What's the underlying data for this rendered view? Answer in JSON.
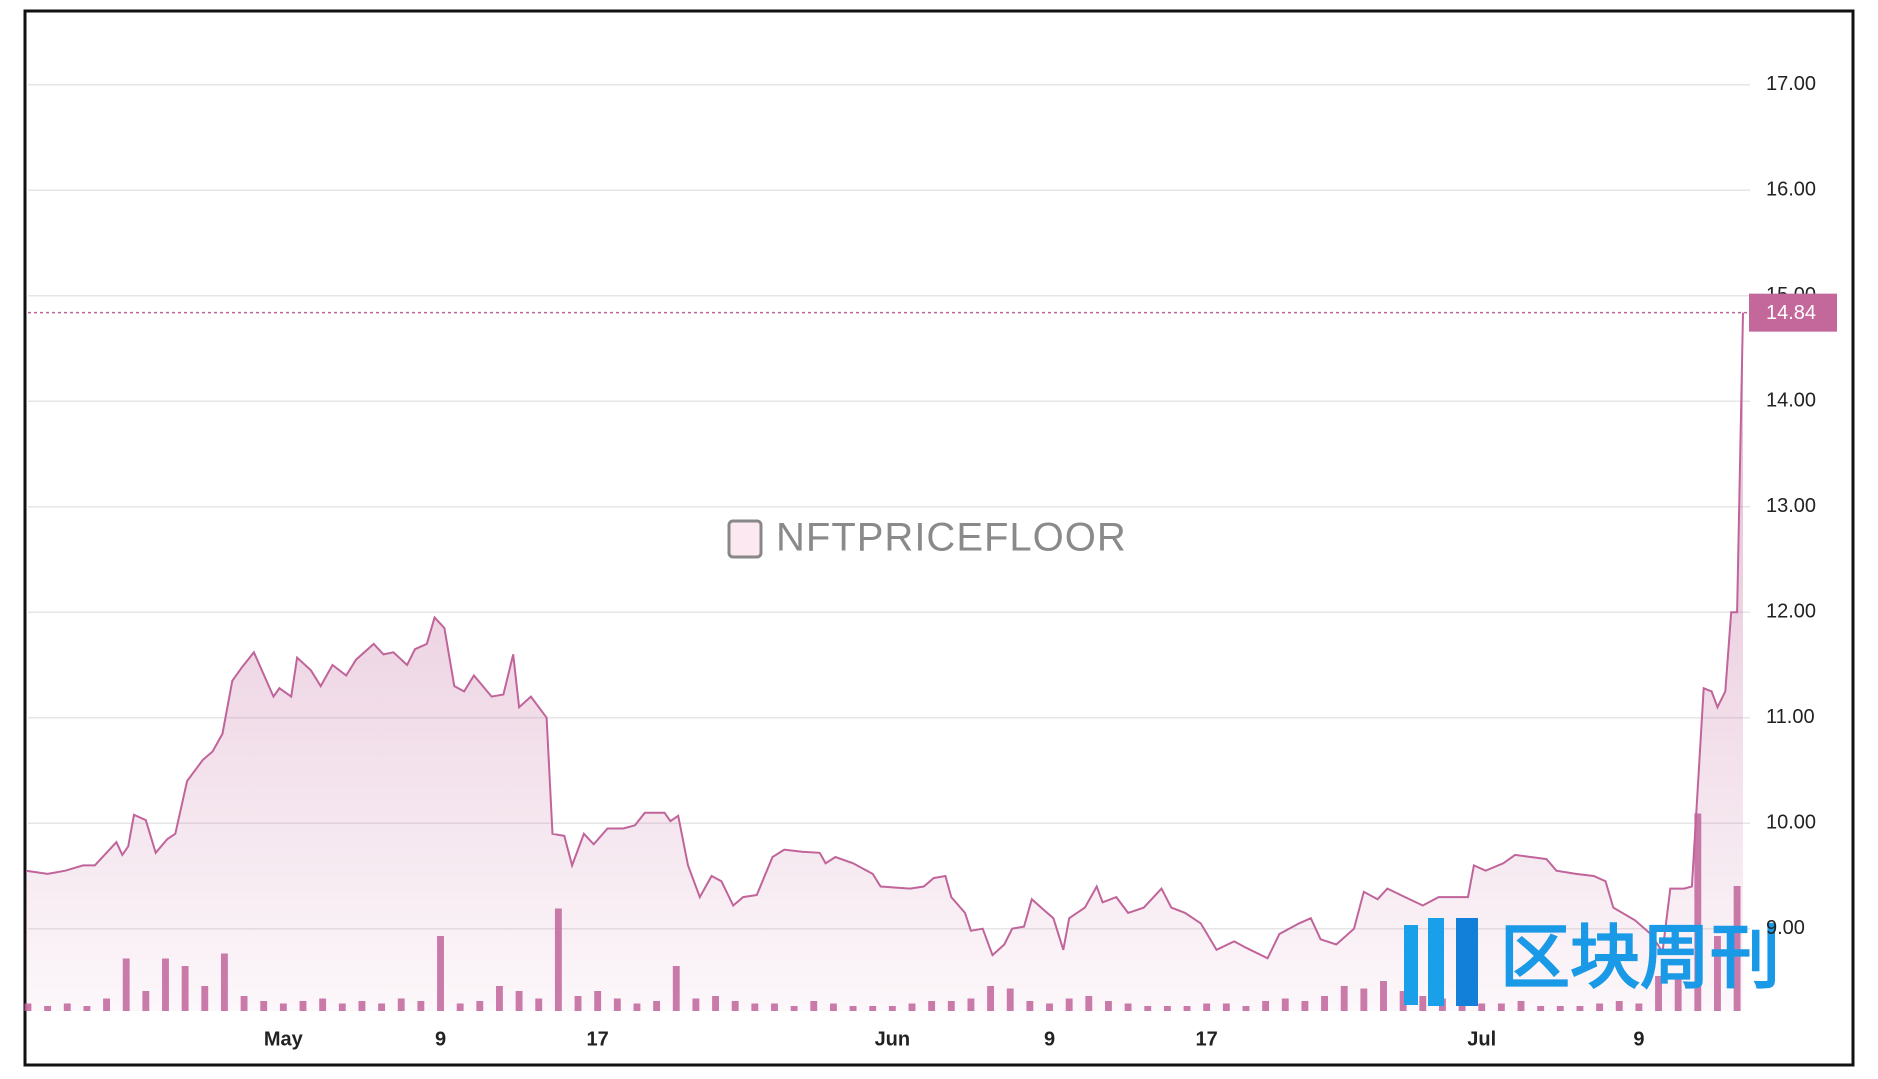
{
  "chart_data": {
    "type": "area",
    "watermark": "NFTPRICEFLOOR",
    "source_watermark": "区块周刊",
    "last_value_label": "14.84",
    "last_value": 14.84,
    "xlim": [
      -13.1,
      74.3
    ],
    "xticks": [
      {
        "value": 0,
        "label": "May"
      },
      {
        "value": 8,
        "label": "9"
      },
      {
        "value": 16,
        "label": "17"
      },
      {
        "value": 31,
        "label": "Jun"
      },
      {
        "value": 39,
        "label": "9"
      },
      {
        "value": 47,
        "label": "17"
      },
      {
        "value": 61,
        "label": "Jul"
      },
      {
        "value": 69,
        "label": "9"
      }
    ],
    "ylim": [
      8.22,
      17.69
    ],
    "yticks": [
      {
        "value": 9,
        "label": "9.00"
      },
      {
        "value": 10,
        "label": "10.00"
      },
      {
        "value": 11,
        "label": "11.00"
      },
      {
        "value": 12,
        "label": "12.00"
      },
      {
        "value": 13,
        "label": "13.00"
      },
      {
        "value": 14,
        "label": "14.00"
      },
      {
        "value": 15,
        "label": "15.00"
      },
      {
        "value": 16,
        "label": "16.00"
      },
      {
        "value": 17,
        "label": "17.00"
      }
    ],
    "y2lim": [
      0,
      100
    ],
    "grid": true,
    "series": [
      {
        "color": "#c0649a",
        "x": [
          -13.1,
          -12,
          -11.1,
          -10.2,
          -9.6,
          -9,
          -8.5,
          -8.2,
          -7.9,
          -7.6,
          -7,
          -6.5,
          -5.9,
          -5.5,
          -4.9,
          -4.1,
          -3.6,
          -3.1,
          -2.6,
          -2.1,
          -1.5,
          -0.5,
          -0.2,
          0.4,
          0.7,
          1.4,
          1.9,
          2.5,
          3.2,
          3.7,
          4.6,
          5.1,
          5.6,
          6.3,
          6.7,
          7.3,
          7.7,
          8.2,
          8.7,
          9.2,
          9.7,
          10.6,
          11.2,
          11.7,
          12,
          12.6,
          13.4,
          13.7,
          14.3,
          14.7,
          15.3,
          15.8,
          16.5,
          17.3,
          17.9,
          18.4,
          19.4,
          19.7,
          20.1,
          20.6,
          21.2,
          21.8,
          22.3,
          22.9,
          23.4,
          24.1,
          24.9,
          25.5,
          26.4,
          27.3,
          27.6,
          28.1,
          29,
          30,
          30.4,
          31.9,
          32.6,
          33.1,
          33.7,
          34,
          34.7,
          35,
          35.6,
          36.1,
          36.7,
          37.1,
          37.7,
          38.1,
          38.7,
          39.2,
          39.7,
          40,
          40.8,
          41.4,
          41.7,
          42.4,
          43,
          43.8,
          44.7,
          45.2,
          45.9,
          46.7,
          47.5,
          48.4,
          49,
          50.1,
          50.7,
          51.7,
          52.3,
          52.8,
          53.6,
          54.5,
          55,
          55.7,
          56.2,
          57.1,
          58,
          58.8,
          60.3,
          60.6,
          61.2,
          62.1,
          62.7,
          64.3,
          64.8,
          65.8,
          66.7,
          67.3,
          67.7,
          68.8,
          69.6,
          70.2,
          70.6,
          71.3,
          71.7,
          72.3,
          72.7,
          73,
          73.4,
          73.7,
          74,
          74.3
        ],
        "values": [
          9.55,
          9.52,
          9.55,
          9.6,
          9.6,
          9.72,
          9.82,
          9.7,
          9.78,
          10.08,
          10.03,
          9.72,
          9.85,
          9.9,
          10.4,
          10.6,
          10.68,
          10.85,
          11.35,
          11.48,
          11.62,
          11.2,
          11.28,
          11.2,
          11.57,
          11.45,
          11.3,
          11.5,
          11.4,
          11.55,
          11.7,
          11.6,
          11.62,
          11.5,
          11.65,
          11.7,
          11.95,
          11.85,
          11.3,
          11.25,
          11.4,
          11.2,
          11.22,
          11.6,
          11.1,
          11.2,
          11,
          9.9,
          9.88,
          9.6,
          9.9,
          9.8,
          9.95,
          9.95,
          9.98,
          10.1,
          10.1,
          10.02,
          10.07,
          9.6,
          9.3,
          9.5,
          9.45,
          9.22,
          9.3,
          9.32,
          9.68,
          9.75,
          9.73,
          9.72,
          9.62,
          9.68,
          9.62,
          9.52,
          9.4,
          9.38,
          9.4,
          9.48,
          9.5,
          9.3,
          9.15,
          8.98,
          9,
          8.75,
          8.85,
          9,
          9.02,
          9.28,
          9.18,
          9.1,
          8.8,
          9.1,
          9.2,
          9.4,
          9.25,
          9.3,
          9.15,
          9.2,
          9.38,
          9.2,
          9.15,
          9.05,
          8.8,
          8.88,
          8.82,
          8.72,
          8.95,
          9.05,
          9.1,
          8.9,
          8.85,
          9,
          9.35,
          9.28,
          9.38,
          9.3,
          9.22,
          9.3,
          9.3,
          9.6,
          9.55,
          9.62,
          9.7,
          9.66,
          9.55,
          9.52,
          9.5,
          9.45,
          9.2,
          9.08,
          8.95,
          8.78,
          9.38,
          9.38,
          9.4,
          11.28,
          11.25,
          11.1,
          11.25,
          12,
          12,
          14.84
        ]
      },
      {
        "color": "#c0649a",
        "axis": "y2",
        "x": [
          -13,
          -12,
          -11,
          -10,
          -9,
          -8,
          -7,
          -6,
          -5,
          -4,
          -3,
          -2,
          -1,
          0,
          1,
          2,
          3,
          4,
          5,
          6,
          7,
          8,
          9,
          10,
          11,
          12,
          13,
          14,
          15,
          16,
          17,
          18,
          19,
          20,
          21,
          22,
          23,
          24,
          25,
          26,
          27,
          28,
          29,
          30,
          31,
          32,
          33,
          34,
          35,
          36,
          37,
          38,
          39,
          40,
          41,
          42,
          43,
          44,
          45,
          46,
          47,
          48,
          49,
          50,
          51,
          52,
          53,
          54,
          55,
          56,
          57,
          58,
          59,
          60,
          61,
          62,
          63,
          64,
          65,
          66,
          67,
          68,
          69,
          70,
          71,
          72,
          73,
          74
        ],
        "values": [
          3,
          2,
          3,
          2,
          5,
          21,
          8,
          21,
          18,
          10,
          23,
          6,
          4,
          3,
          4,
          5,
          3,
          4,
          3,
          5,
          4,
          30,
          3,
          4,
          10,
          8,
          5,
          41,
          6,
          8,
          5,
          3,
          4,
          18,
          5,
          6,
          4,
          3,
          3,
          2,
          4,
          3,
          2,
          2,
          2,
          3,
          4,
          4,
          5,
          10,
          9,
          4,
          3,
          5,
          6,
          4,
          3,
          2,
          2,
          2,
          3,
          3,
          2,
          4,
          5,
          4,
          6,
          10,
          9,
          12,
          8,
          6,
          5,
          4,
          3,
          3,
          4,
          2,
          2,
          2,
          3,
          4,
          3,
          14,
          14,
          79,
          30,
          50
        ]
      }
    ]
  }
}
